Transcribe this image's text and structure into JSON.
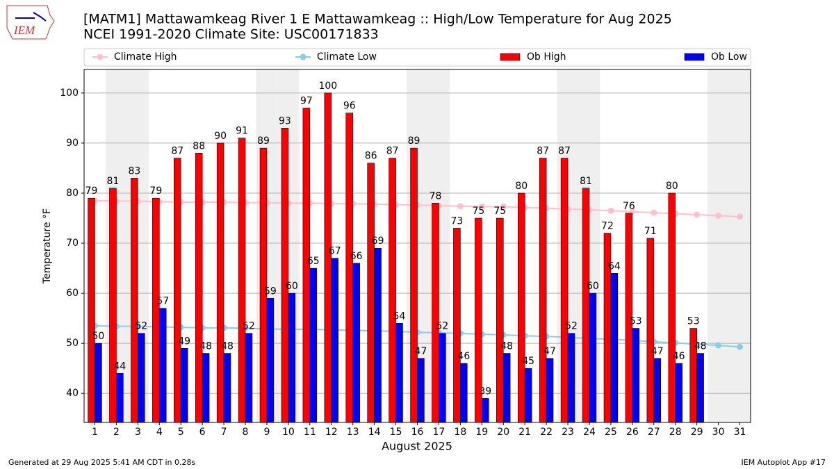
{
  "logo_text": "IEM",
  "footer_left": "Generated at 29 Aug 2025 5:41 AM CDT in 0.28s",
  "footer_right": "IEM Autoplot App #17",
  "chart_data": {
    "type": "bar",
    "title": "[MATM1] Mattawamkeag River 1 E Mattawamkeag :: High/Low Temperature for Aug 2025",
    "subtitle": "NCEI 1991-2020 Climate Site: USC00171833",
    "y_label": "Temperature °F",
    "x_label": "August 2025",
    "categories": [
      "1",
      "2",
      "3",
      "4",
      "5",
      "6",
      "7",
      "8",
      "9",
      "10",
      "11",
      "12",
      "13",
      "14",
      "15",
      "16",
      "17",
      "18",
      "19",
      "20",
      "21",
      "22",
      "23",
      "24",
      "25",
      "26",
      "27",
      "28",
      "29",
      "30",
      "31"
    ],
    "ylim": [
      34.2,
      104.7
    ],
    "yticks": [
      40,
      50,
      60,
      70,
      80,
      90,
      100
    ],
    "grid": true,
    "legend": "top",
    "series": [
      {
        "name": "Climate High",
        "kind": "line",
        "color": "#ffc0cb",
        "values": [
          78.5,
          78.4,
          78.4,
          78.3,
          78.2,
          78.2,
          78.2,
          78.1,
          78.1,
          78.0,
          78.0,
          77.9,
          77.9,
          77.8,
          77.7,
          77.6,
          77.5,
          77.4,
          77.3,
          77.3,
          77.1,
          77.0,
          76.8,
          76.7,
          76.5,
          76.3,
          76.1,
          75.9,
          75.7,
          75.5,
          75.3
        ]
      },
      {
        "name": "Climate Low",
        "kind": "line",
        "color": "#87ceeb",
        "values": [
          53.5,
          53.4,
          53.4,
          53.3,
          53.2,
          53.1,
          53.1,
          53.0,
          52.9,
          52.8,
          52.8,
          52.7,
          52.6,
          52.5,
          52.4,
          52.2,
          52.1,
          52.0,
          51.8,
          51.7,
          51.5,
          51.4,
          51.2,
          51.0,
          50.8,
          50.6,
          50.3,
          50.1,
          49.8,
          49.6,
          49.3
        ]
      },
      {
        "name": "Ob High",
        "kind": "bar",
        "color": "#ff0000",
        "values": [
          79,
          81,
          83,
          79,
          87,
          88,
          90,
          91,
          89,
          93,
          97,
          100,
          96,
          86,
          87,
          89,
          78,
          73,
          75,
          75,
          80,
          87,
          87,
          81,
          72,
          76,
          71,
          80,
          53,
          null,
          null
        ]
      },
      {
        "name": "Ob Low",
        "kind": "bar",
        "color": "#0000ff",
        "values": [
          50,
          44,
          52,
          57,
          49,
          48,
          48,
          52,
          59,
          60,
          65,
          67,
          66,
          69,
          54,
          47,
          52,
          46,
          39,
          48,
          45,
          47,
          52,
          60,
          64,
          53,
          47,
          46,
          48,
          null,
          null
        ]
      }
    ]
  }
}
